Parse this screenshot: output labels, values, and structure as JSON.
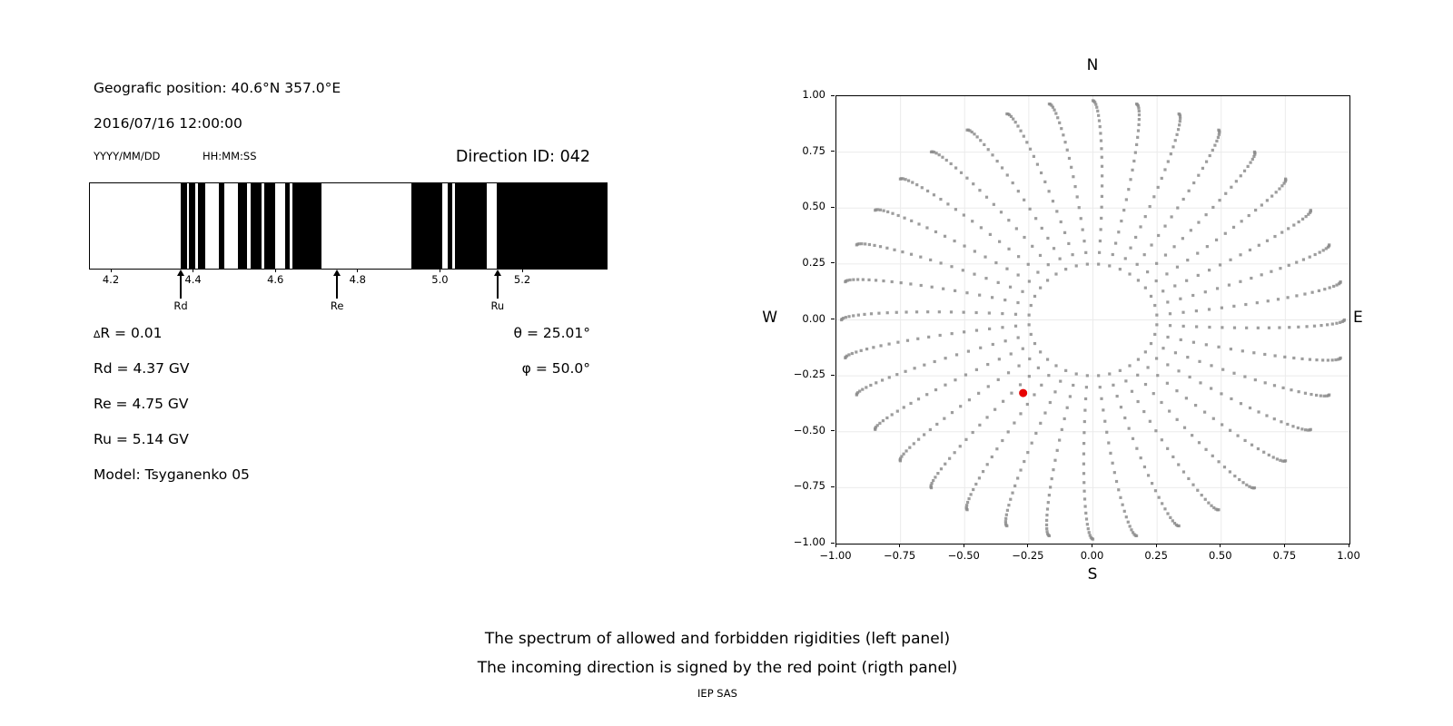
{
  "header": {
    "geo_position": "Geografic position: 40.6°N 357.0°E",
    "datetime": "2016/07/16 12:00:00",
    "date_format_label": "YYYY/MM/DD",
    "time_format_label": "HH:MM:SS",
    "direction_id_label": "Direction ID: 042"
  },
  "parameters": {
    "delta_symbol": "∆",
    "delta_r": "R = 0.01",
    "rd": "Rd = 4.37 GV",
    "re": "Re = 4.75 GV",
    "ru": "Ru = 5.14 GV",
    "model": "Model: Tsyganenko 05",
    "theta": "θ = 25.01°",
    "phi": "φ = 50.0°"
  },
  "captions": {
    "line1": "The spectrum of allowed and forbidden rigidities (left panel)",
    "line2": "The incoming direction is signed by the red point (rigth panel)",
    "credit": "IEP SAS"
  },
  "chart_data": [
    {
      "type": "bar",
      "name": "rigidity-spectrum",
      "description": "Barcode-style spectrum of allowed (black) and forbidden (white) rigidities in GV",
      "x_min": 4.147,
      "x_max": 5.403,
      "x_ticks": [
        {
          "v": 4.2,
          "label": "4.2"
        },
        {
          "v": 4.4,
          "label": "4.4"
        },
        {
          "v": 4.6,
          "label": "4.6"
        },
        {
          "v": 4.8,
          "label": "4.8"
        },
        {
          "v": 5.0,
          "label": "5.0"
        },
        {
          "v": 5.2,
          "label": "5.2"
        }
      ],
      "allowed_bands_gv": [
        [
          4.368,
          4.383
        ],
        [
          4.388,
          4.404
        ],
        [
          4.41,
          4.427
        ],
        [
          4.46,
          4.473
        ],
        [
          4.506,
          4.53
        ],
        [
          4.537,
          4.564
        ],
        [
          4.571,
          4.597
        ],
        [
          4.622,
          4.633
        ],
        [
          4.639,
          4.711
        ],
        [
          4.929,
          5.004
        ],
        [
          5.017,
          5.028
        ],
        [
          5.034,
          5.112
        ],
        [
          5.136,
          5.403
        ]
      ],
      "markers": [
        {
          "label": "Rd",
          "value": 4.37
        },
        {
          "label": "Re",
          "value": 4.75
        },
        {
          "label": "Ru",
          "value": 5.14
        }
      ],
      "colors": {
        "band": "#000000",
        "background": "#ffffff",
        "spine": "#000000"
      }
    },
    {
      "type": "scatter",
      "name": "incoming-direction-grid",
      "description": "Grid of asymptotic viewing directions (gray dots) with the incoming direction marked by a red point",
      "xlim": [
        -1.0,
        1.0
      ],
      "ylim": [
        -1.0,
        1.0
      ],
      "grid": true,
      "compass_labels": {
        "top": "N",
        "bottom": "S",
        "left": "W",
        "right": "E"
      },
      "x_ticks": [
        {
          "v": -1.0,
          "label": "−1.00"
        },
        {
          "v": -0.75,
          "label": "−0.75"
        },
        {
          "v": -0.5,
          "label": "−0.50"
        },
        {
          "v": -0.25,
          "label": "−0.25"
        },
        {
          "v": 0.0,
          "label": "0.00"
        },
        {
          "v": 0.25,
          "label": "0.25"
        },
        {
          "v": 0.5,
          "label": "0.50"
        },
        {
          "v": 0.75,
          "label": "0.75"
        },
        {
          "v": 1.0,
          "label": "1.00"
        }
      ],
      "y_ticks": [
        {
          "v": 1.0,
          "label": "1.00"
        },
        {
          "v": 0.75,
          "label": "0.75"
        },
        {
          "v": 0.5,
          "label": "0.50"
        },
        {
          "v": 0.25,
          "label": "0.25"
        },
        {
          "v": 0.0,
          "label": "0.00"
        },
        {
          "v": -0.25,
          "label": "−0.25"
        },
        {
          "v": -0.5,
          "label": "−0.50"
        },
        {
          "v": -0.75,
          "label": "−0.75"
        },
        {
          "v": -1.0,
          "label": "−1.00"
        }
      ],
      "direction_grid": {
        "n_spokes": 36,
        "azimuth_step_deg": 10,
        "dots_per_spoke": 23,
        "r_inner": 0.25,
        "r_outer": 0.98,
        "azimuth_drift_deg": 5,
        "radial_profile": "sin_quarter",
        "dot_size_px": 3.2
      },
      "red_point": {
        "x": -0.272,
        "y": -0.327,
        "theta_deg": 25.01,
        "phi_deg": 50.0,
        "radius_px": 4.5
      },
      "colors": {
        "dot": "#8c8c8c",
        "red": "#e60000",
        "grid": "#ebebeb",
        "spine": "#000000"
      }
    }
  ]
}
